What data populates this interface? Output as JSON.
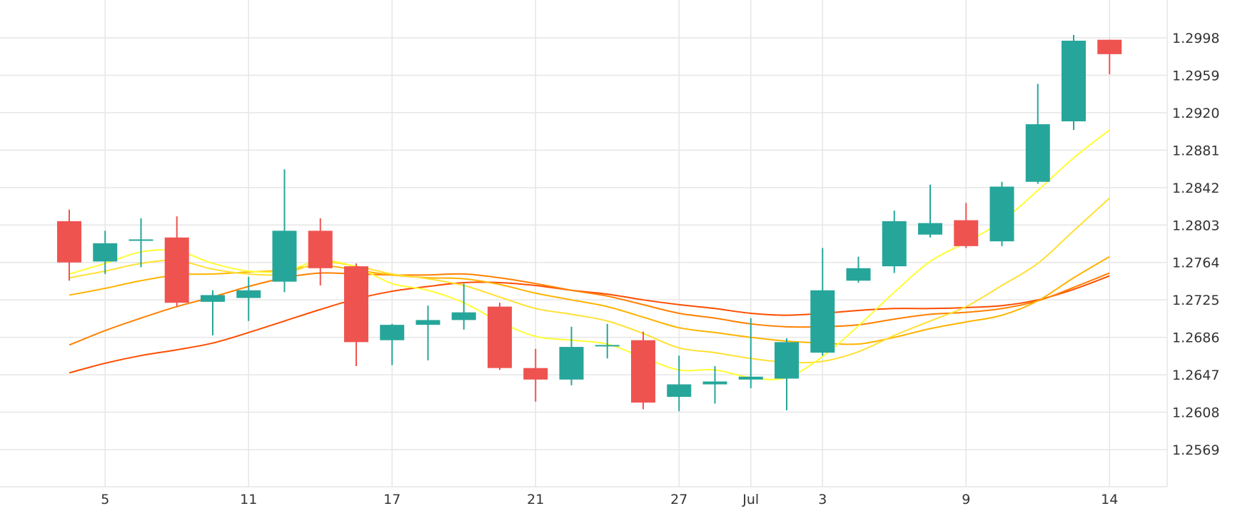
{
  "chart_data": {
    "type": "candlestick",
    "title": "",
    "xlabel": "",
    "ylabel": "",
    "grid": true,
    "ylim": [
      1.253,
      1.3025
    ],
    "y_ticks": [
      "1.2998",
      "1.2959",
      "1.2920",
      "1.2881",
      "1.2842",
      "1.2803",
      "1.2764",
      "1.2725",
      "1.2686",
      "1.2647",
      "1.2608",
      "1.2569"
    ],
    "x_ticks": [
      {
        "label": "5",
        "index": 1
      },
      {
        "label": "11",
        "index": 5
      },
      {
        "label": "17",
        "index": 9
      },
      {
        "label": "21",
        "index": 13
      },
      {
        "label": "27",
        "index": 17
      },
      {
        "label": "Jul",
        "index": 19
      },
      {
        "label": "3",
        "index": 21
      },
      {
        "label": "9",
        "index": 25
      },
      {
        "label": "14",
        "index": 29
      }
    ],
    "candles": [
      {
        "open": 1.2807,
        "high": 1.2819,
        "low": 1.2745,
        "close": 1.2764
      },
      {
        "open": 1.2765,
        "high": 1.2797,
        "low": 1.2752,
        "close": 1.2784
      },
      {
        "open": 1.2788,
        "high": 1.281,
        "low": 1.2759,
        "close": 1.2788
      },
      {
        "open": 1.279,
        "high": 1.2812,
        "low": 1.2718,
        "close": 1.2722
      },
      {
        "open": 1.2723,
        "high": 1.2735,
        "low": 1.2688,
        "close": 1.273
      },
      {
        "open": 1.2727,
        "high": 1.2749,
        "low": 1.2703,
        "close": 1.2735
      },
      {
        "open": 1.2744,
        "high": 1.2861,
        "low": 1.2733,
        "close": 1.2797
      },
      {
        "open": 1.2797,
        "high": 1.281,
        "low": 1.274,
        "close": 1.2758
      },
      {
        "open": 1.276,
        "high": 1.2763,
        "low": 1.2656,
        "close": 1.2681
      },
      {
        "open": 1.2683,
        "high": 1.27,
        "low": 1.2657,
        "close": 1.2699
      },
      {
        "open": 1.2699,
        "high": 1.2719,
        "low": 1.2662,
        "close": 1.2704
      },
      {
        "open": 1.2704,
        "high": 1.2742,
        "low": 1.2694,
        "close": 1.2712
      },
      {
        "open": 1.2718,
        "high": 1.2722,
        "low": 1.2652,
        "close": 1.2654
      },
      {
        "open": 1.2654,
        "high": 1.2674,
        "low": 1.2619,
        "close": 1.2642
      },
      {
        "open": 1.2642,
        "high": 1.2697,
        "low": 1.2636,
        "close": 1.2676
      },
      {
        "open": 1.2678,
        "high": 1.27,
        "low": 1.2664,
        "close": 1.2678
      },
      {
        "open": 1.2683,
        "high": 1.2692,
        "low": 1.2611,
        "close": 1.2618
      },
      {
        "open": 1.2624,
        "high": 1.2667,
        "low": 1.2609,
        "close": 1.2637
      },
      {
        "open": 1.2637,
        "high": 1.2656,
        "low": 1.2617,
        "close": 1.264
      },
      {
        "open": 1.2642,
        "high": 1.2706,
        "low": 1.2633,
        "close": 1.2645
      },
      {
        "open": 1.2643,
        "high": 1.2685,
        "low": 1.261,
        "close": 1.2681
      },
      {
        "open": 1.267,
        "high": 1.2779,
        "low": 1.2667,
        "close": 1.2735
      },
      {
        "open": 1.2745,
        "high": 1.277,
        "low": 1.2743,
        "close": 1.2758
      },
      {
        "open": 1.276,
        "high": 1.2818,
        "low": 1.2753,
        "close": 1.2807
      },
      {
        "open": 1.2793,
        "high": 1.2845,
        "low": 1.279,
        "close": 1.2805
      },
      {
        "open": 1.2808,
        "high": 1.2826,
        "low": 1.2779,
        "close": 1.2781
      },
      {
        "open": 1.2786,
        "high": 1.2848,
        "low": 1.2781,
        "close": 1.2843
      },
      {
        "open": 1.2848,
        "high": 1.295,
        "low": 1.2846,
        "close": 1.2908
      },
      {
        "open": 1.2911,
        "high": 1.3001,
        "low": 1.2902,
        "close": 1.2995
      },
      {
        "open": 1.2996,
        "high": 1.2996,
        "low": 1.296,
        "close": 1.2981
      }
    ],
    "moving_averages": [
      {
        "color": "#ffff33",
        "values": [
          1.2752,
          1.2763,
          1.2775,
          1.2776,
          1.2763,
          1.2755,
          1.2755,
          1.2766,
          1.2759,
          1.2742,
          1.2735,
          1.2722,
          1.2702,
          1.2687,
          1.2683,
          1.2679,
          1.2665,
          1.2652,
          1.2652,
          1.2644,
          1.2644,
          1.2666,
          1.2698,
          1.2733,
          1.2765,
          1.2785,
          1.2807,
          1.2839,
          1.2873,
          1.2902
        ]
      },
      {
        "color": "#ffe033",
        "values": [
          1.2748,
          1.2755,
          1.2763,
          1.2766,
          1.2757,
          1.2752,
          1.2752,
          1.2764,
          1.276,
          1.2752,
          1.2747,
          1.274,
          1.2728,
          1.2716,
          1.271,
          1.2703,
          1.269,
          1.2675,
          1.267,
          1.2664,
          1.266,
          1.2661,
          1.2671,
          1.2688,
          1.2703,
          1.2718,
          1.274,
          1.2763,
          1.2797,
          1.2831
        ]
      },
      {
        "color": "#ffb300",
        "values": [
          1.273,
          1.2737,
          1.2745,
          1.2751,
          1.2752,
          1.2754,
          1.2756,
          1.2761,
          1.2756,
          1.2751,
          1.2748,
          1.2747,
          1.2741,
          1.2732,
          1.2725,
          1.2718,
          1.2707,
          1.2696,
          1.2691,
          1.2686,
          1.2682,
          1.268,
          1.2679,
          1.2686,
          1.2695,
          1.2702,
          1.2709,
          1.2724,
          1.2748,
          1.277
        ]
      },
      {
        "color": "#ff8000",
        "values": [
          1.2678,
          1.2693,
          1.2706,
          1.2718,
          1.2728,
          1.2739,
          1.2748,
          1.2753,
          1.2752,
          1.2751,
          1.2751,
          1.2752,
          1.2748,
          1.2742,
          1.2735,
          1.2729,
          1.272,
          1.2711,
          1.2706,
          1.27,
          1.2697,
          1.2697,
          1.2699,
          1.2705,
          1.271,
          1.2712,
          1.2716,
          1.2724,
          1.2738,
          1.2753
        ]
      },
      {
        "color": "#ff4d00",
        "values": [
          1.2649,
          1.2659,
          1.2667,
          1.2673,
          1.268,
          1.2691,
          1.2703,
          1.2715,
          1.2726,
          1.2734,
          1.2739,
          1.2743,
          1.2743,
          1.274,
          1.2735,
          1.2731,
          1.2725,
          1.272,
          1.2716,
          1.2711,
          1.2709,
          1.2711,
          1.2714,
          1.2716,
          1.2716,
          1.2717,
          1.2719,
          1.2725,
          1.2736,
          1.275
        ]
      }
    ],
    "colors": {
      "up": "#26a69a",
      "down": "#ef5350",
      "grid": "#e6e6e6",
      "axis_text": "#333333",
      "background": "#ffffff"
    }
  }
}
